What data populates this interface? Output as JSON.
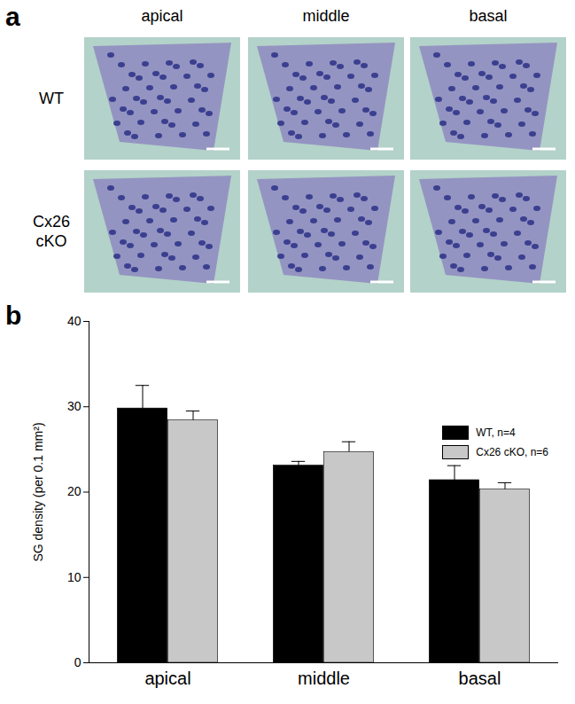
{
  "panel_labels": [
    "a",
    "b"
  ],
  "micrographs": {
    "columns": [
      "apical",
      "middle",
      "basal"
    ],
    "rows": [
      "WT",
      "Cx26 cKO"
    ]
  },
  "chart_data": {
    "type": "bar",
    "categories": [
      "apical",
      "middle",
      "basal"
    ],
    "ylabel": "SG density (per 0.1 mm²)",
    "ylim": [
      0,
      40
    ],
    "yticks": [
      0,
      10,
      20,
      30,
      40
    ],
    "grid": false,
    "legend": "top-right",
    "series": [
      {
        "name": "WT, n=4",
        "color": "#000000",
        "values": [
          29.8,
          23.1,
          21.4
        ],
        "errors": [
          2.7,
          0.5,
          1.7
        ]
      },
      {
        "name": "Cx26 cKO, n=6",
        "color": "#c8c8c8",
        "values": [
          28.4,
          24.7,
          20.3
        ],
        "errors": [
          1.1,
          1.2,
          0.8
        ]
      }
    ]
  }
}
